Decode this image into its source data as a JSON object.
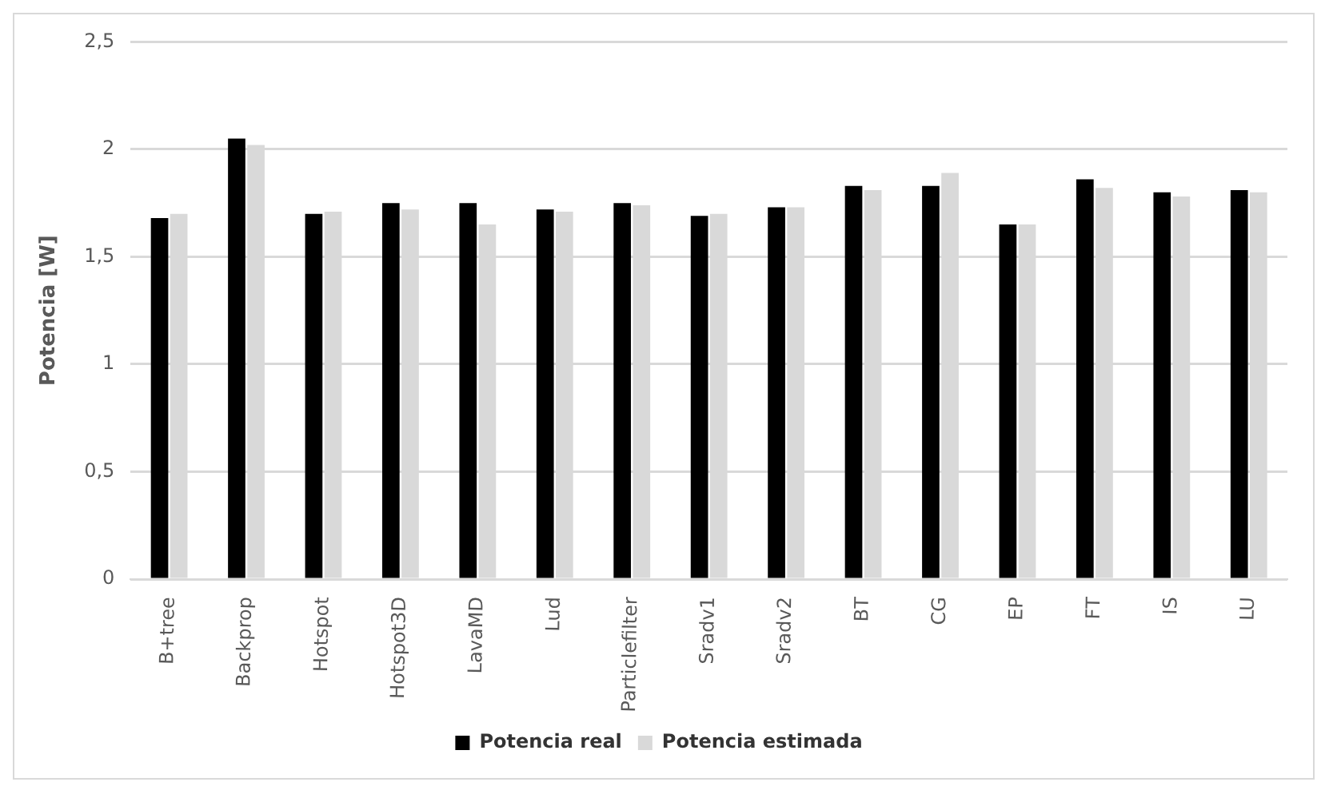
{
  "chart_data": {
    "type": "bar",
    "ylabel": "Potencia [W]",
    "categories": [
      "B+tree",
      "Backprop",
      "Hotspot",
      "Hotspot3D",
      "LavaMD",
      "Lud",
      "Particlefilter",
      "Sradv1",
      "Sradv2",
      "BT",
      "CG",
      "EP",
      "FT",
      "IS",
      "LU"
    ],
    "series": [
      {
        "name": "Potencia real",
        "color": "#000000",
        "values": [
          1.68,
          2.05,
          1.7,
          1.75,
          1.75,
          1.72,
          1.75,
          1.69,
          1.73,
          1.83,
          1.83,
          1.65,
          1.86,
          1.8,
          1.81
        ]
      },
      {
        "name": "Potencia estimada",
        "color": "#d9d9d9",
        "values": [
          1.7,
          2.02,
          1.71,
          1.72,
          1.65,
          1.71,
          1.74,
          1.7,
          1.73,
          1.81,
          1.89,
          1.65,
          1.82,
          1.78,
          1.8
        ]
      }
    ],
    "ylim": [
      0,
      2.5
    ],
    "yticks": [
      {
        "value": 0,
        "label": "0"
      },
      {
        "value": 0.5,
        "label": "0,5"
      },
      {
        "value": 1,
        "label": "1"
      },
      {
        "value": 1.5,
        "label": "1,5"
      },
      {
        "value": 2,
        "label": "2"
      },
      {
        "value": 2.5,
        "label": "2,5"
      }
    ],
    "grid": "y",
    "legend": "bottom"
  }
}
